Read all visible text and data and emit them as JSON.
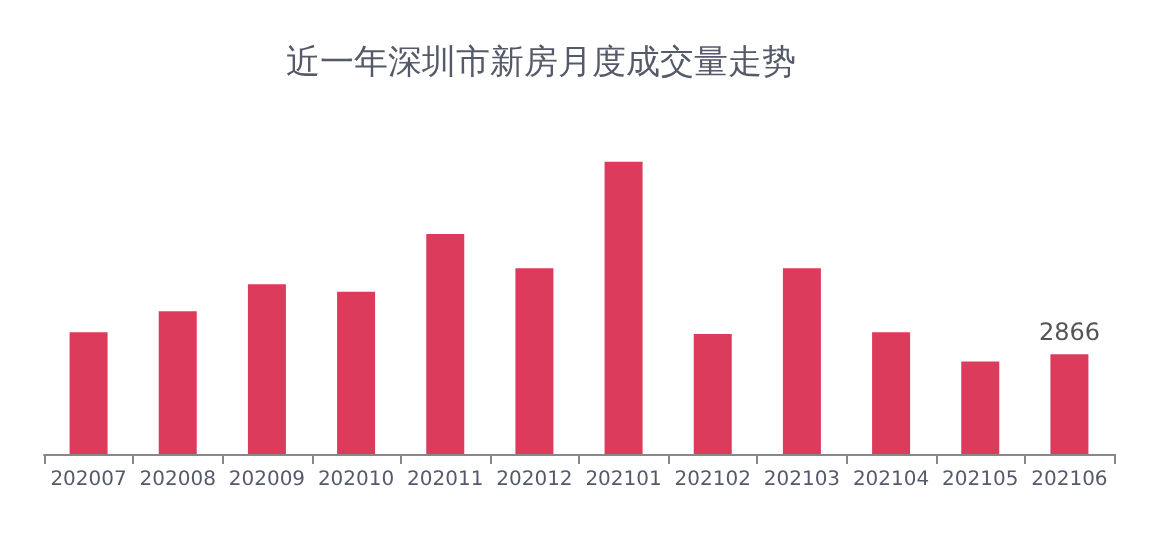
{
  "chart_data": {
    "type": "bar",
    "title": "近一年深圳市新房月度成交量走势",
    "categories": [
      "202007",
      "202008",
      "202009",
      "202010",
      "202011",
      "202012",
      "202101",
      "202102",
      "202103",
      "202104",
      "202105",
      "202106"
    ],
    "values": [
      3500,
      4100,
      4880,
      4660,
      6320,
      5340,
      8400,
      3450,
      5340,
      3500,
      2660,
      2866
    ],
    "value_labels": [
      null,
      null,
      null,
      null,
      null,
      null,
      null,
      null,
      null,
      null,
      null,
      "2866"
    ],
    "color": "#dc3b5c",
    "tick_labels": "x"
  }
}
